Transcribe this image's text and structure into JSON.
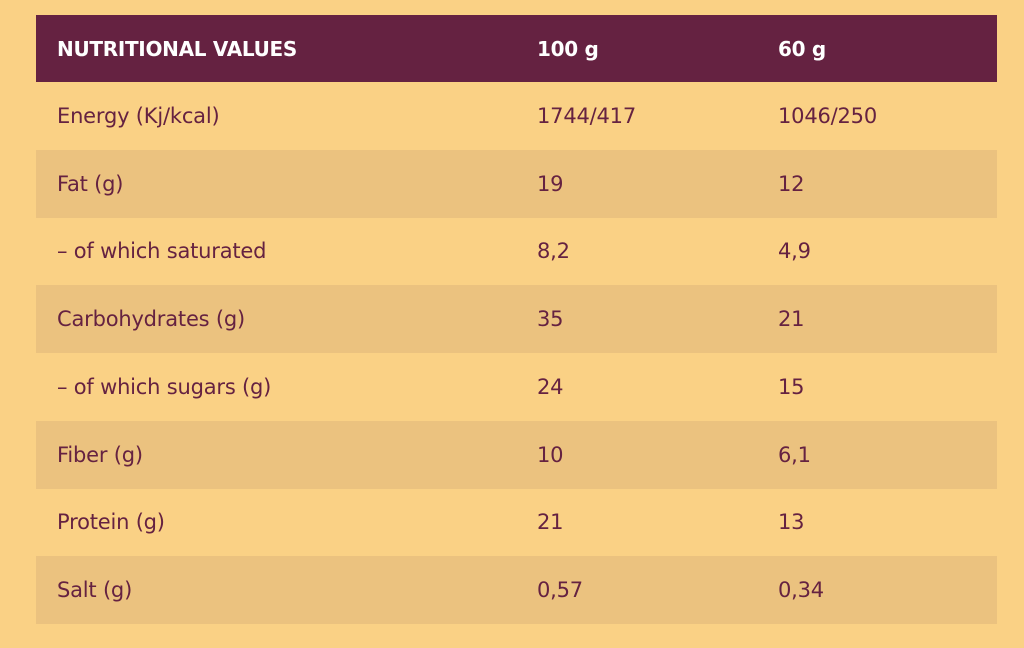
{
  "colors": {
    "page_background": "#fad185",
    "header_background": "#652241",
    "header_text": "#ffffff",
    "shaded_row": "#ebc27f",
    "body_text": "#652241"
  },
  "table": {
    "headers": [
      "NUTRITIONAL VALUES",
      "100 g",
      "60 g"
    ],
    "rows": [
      [
        "Energy (Kj/kcal)",
        "1744/417",
        "1046/250"
      ],
      [
        "Fat (g)",
        "19",
        "12"
      ],
      [
        "– of which saturated",
        "8,2",
        "4,9"
      ],
      [
        "Carbohydrates (g)",
        "35",
        "21"
      ],
      [
        "– of which sugars (g)",
        "24",
        "15"
      ],
      [
        "Fiber (g)",
        "10",
        "6,1"
      ],
      [
        "Protein (g)",
        "21",
        "13"
      ],
      [
        "Salt (g)",
        "0,57",
        "0,34"
      ]
    ]
  }
}
